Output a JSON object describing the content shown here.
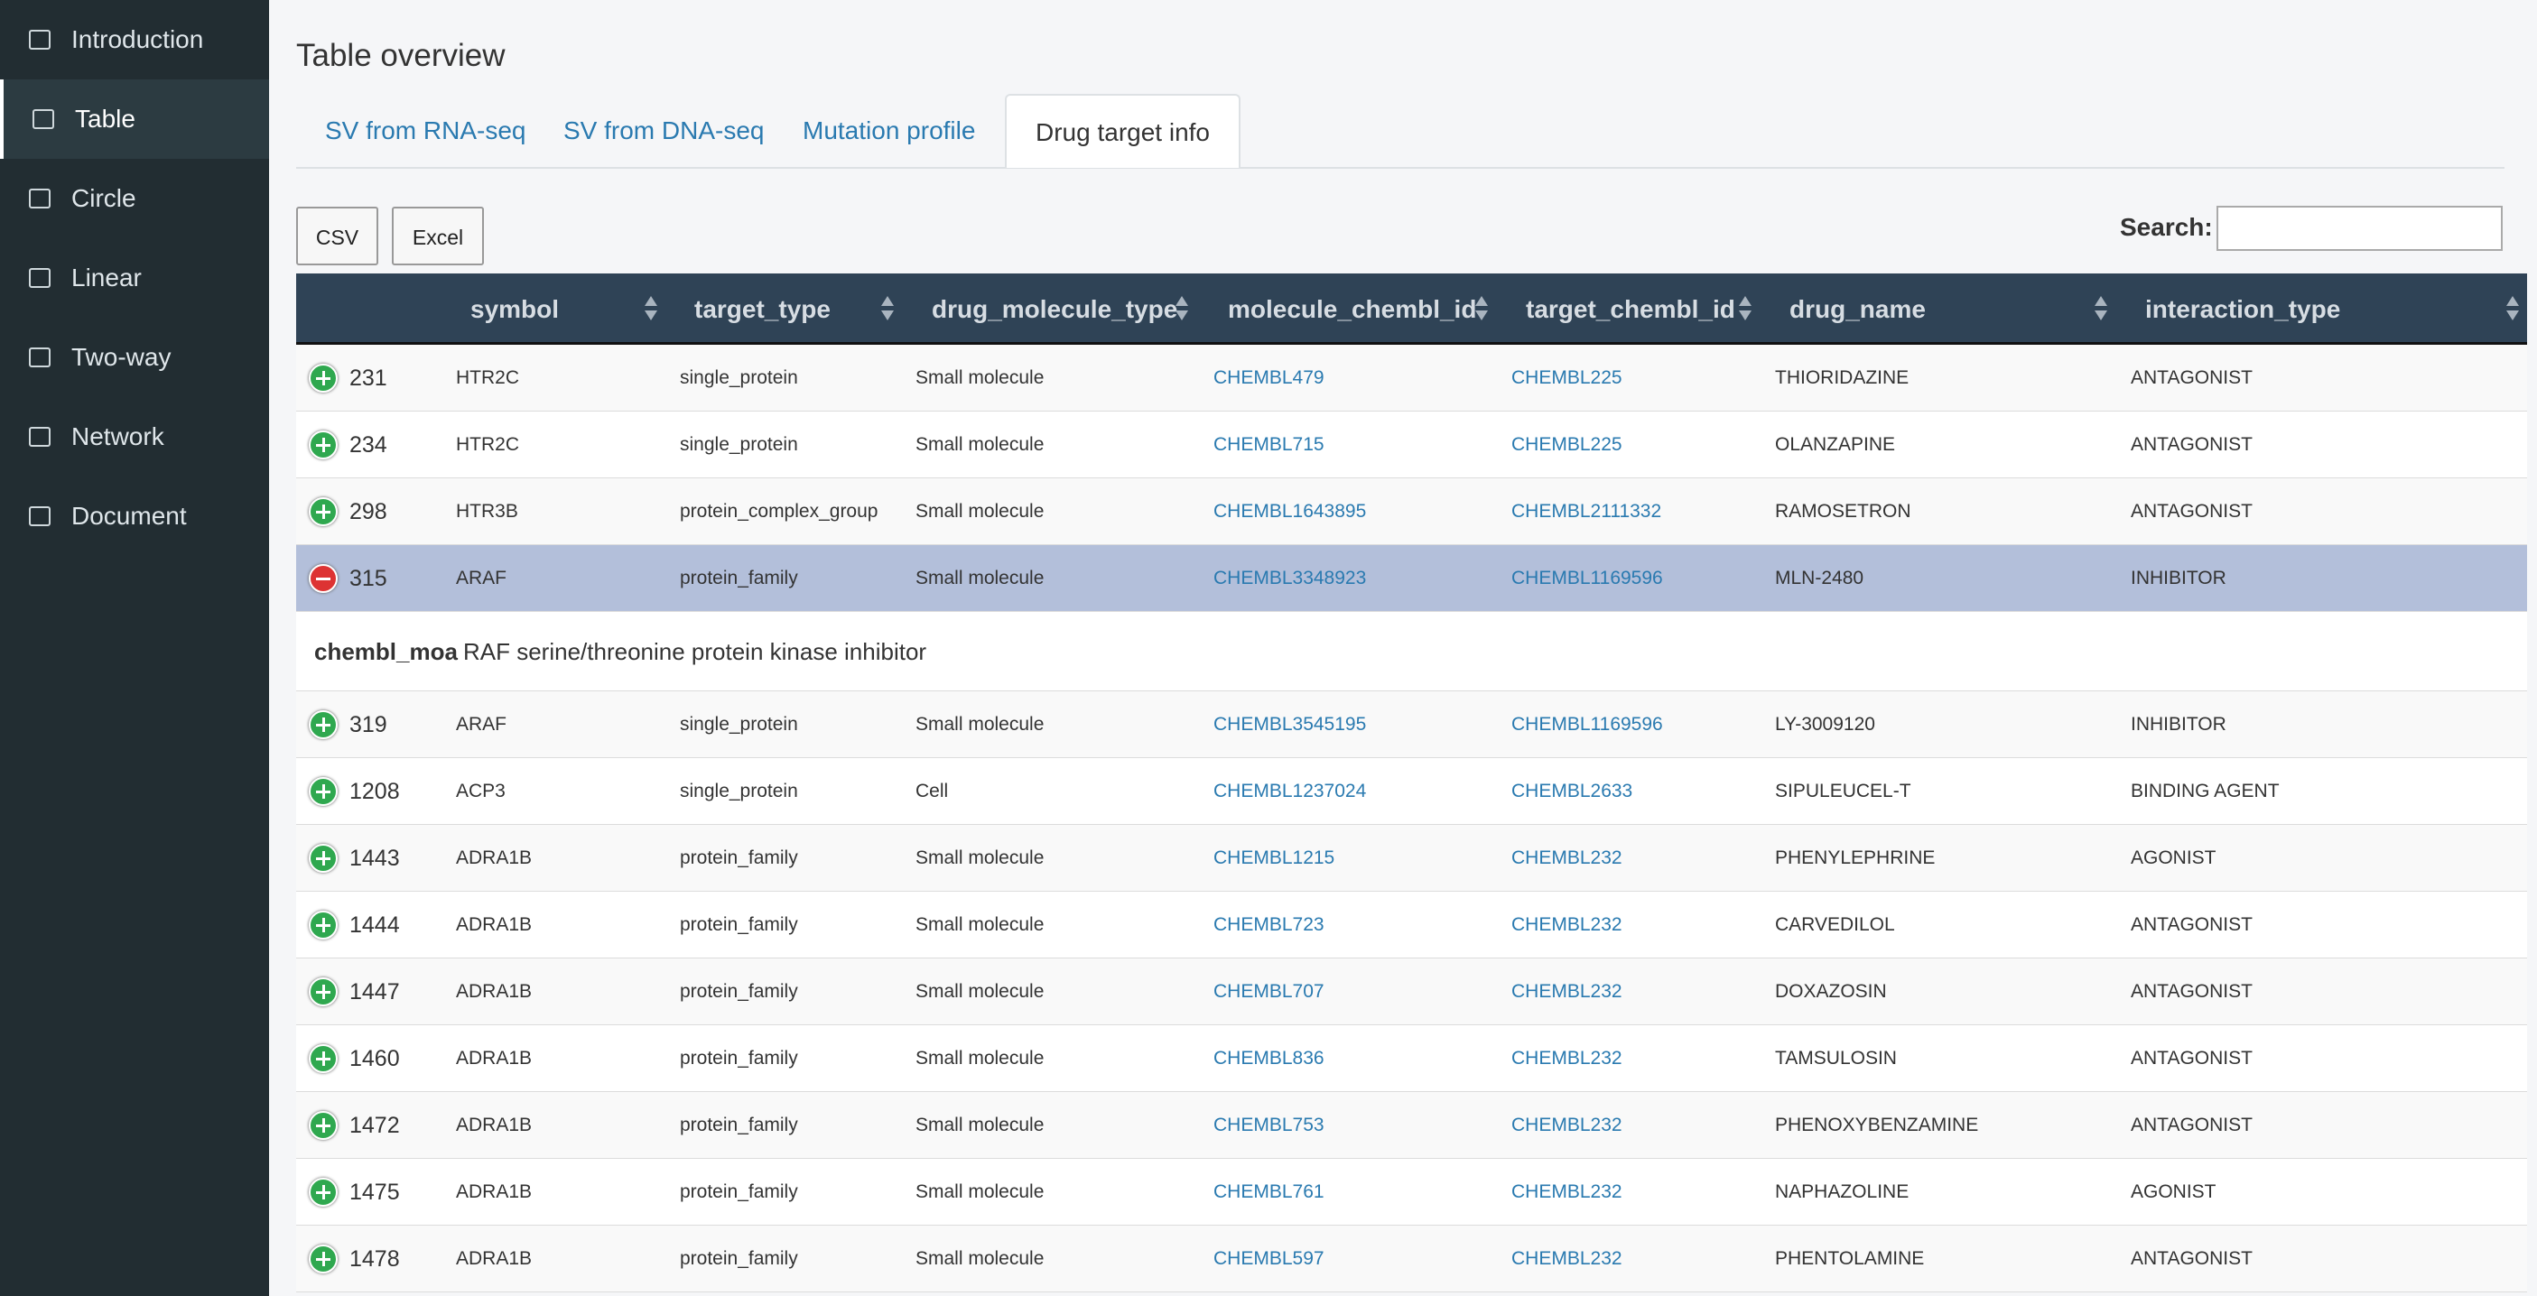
{
  "sidebar": {
    "items": [
      "Introduction",
      "Table",
      "Circle",
      "Linear",
      "Two-way",
      "Network",
      "Document"
    ],
    "active": 1
  },
  "header": {
    "title": "Table overview"
  },
  "tabs": {
    "items": [
      "SV from RNA-seq",
      "SV from DNA-seq",
      "Mutation profile",
      "Drug target info"
    ],
    "active": 3
  },
  "buttons": [
    "CSV",
    "Excel"
  ],
  "search": {
    "label": "Search:"
  },
  "table": {
    "columns": [
      "symbol",
      "target_type",
      "drug_molecule_type",
      "molecule_chembl_id",
      "target_chembl_id",
      "drug_name",
      "interaction_type"
    ],
    "rows": [
      {
        "id": "231",
        "cells": [
          "HTR2C",
          "single_protein",
          "Small molecule",
          "CHEMBL479",
          "CHEMBL225",
          "THIORIDAZINE",
          "ANTAGONIST"
        ]
      },
      {
        "id": "234",
        "cells": [
          "HTR2C",
          "single_protein",
          "Small molecule",
          "CHEMBL715",
          "CHEMBL225",
          "OLANZAPINE",
          "ANTAGONIST"
        ]
      },
      {
        "id": "298",
        "cells": [
          "HTR3B",
          "protein_complex_group",
          "Small molecule",
          "CHEMBL1643895",
          "CHEMBL2111332",
          "RAMOSETRON",
          "ANTAGONIST"
        ]
      },
      {
        "id": "315",
        "cells": [
          "ARAF",
          "protein_family",
          "Small molecule",
          "CHEMBL3348923",
          "CHEMBL1169596",
          "MLN-2480",
          "INHIBITOR"
        ],
        "detail": {
          "label": "chembl_moa",
          "text": "RAF serine/threonine protein kinase inhibitor"
        }
      },
      {
        "id": "319",
        "cells": [
          "ARAF",
          "single_protein",
          "Small molecule",
          "CHEMBL3545195",
          "CHEMBL1169596",
          "LY-3009120",
          "INHIBITOR"
        ]
      },
      {
        "id": "1208",
        "cells": [
          "ACP3",
          "single_protein",
          "Cell",
          "CHEMBL1237024",
          "CHEMBL2633",
          "SIPULEUCEL-T",
          "BINDING AGENT"
        ]
      },
      {
        "id": "1443",
        "cells": [
          "ADRA1B",
          "protein_family",
          "Small molecule",
          "CHEMBL1215",
          "CHEMBL232",
          "PHENYLEPHRINE",
          "AGONIST"
        ]
      },
      {
        "id": "1444",
        "cells": [
          "ADRA1B",
          "protein_family",
          "Small molecule",
          "CHEMBL723",
          "CHEMBL232",
          "CARVEDILOL",
          "ANTAGONIST"
        ]
      },
      {
        "id": "1447",
        "cells": [
          "ADRA1B",
          "protein_family",
          "Small molecule",
          "CHEMBL707",
          "CHEMBL232",
          "DOXAZOSIN",
          "ANTAGONIST"
        ]
      },
      {
        "id": "1460",
        "cells": [
          "ADRA1B",
          "protein_family",
          "Small molecule",
          "CHEMBL836",
          "CHEMBL232",
          "TAMSULOSIN",
          "ANTAGONIST"
        ]
      },
      {
        "id": "1472",
        "cells": [
          "ADRA1B",
          "protein_family",
          "Small molecule",
          "CHEMBL753",
          "CHEMBL232",
          "PHENOXYBENZAMINE",
          "ANTAGONIST"
        ]
      },
      {
        "id": "1475",
        "cells": [
          "ADRA1B",
          "protein_family",
          "Small molecule",
          "CHEMBL761",
          "CHEMBL232",
          "NAPHAZOLINE",
          "AGONIST"
        ]
      },
      {
        "id": "1478",
        "cells": [
          "ADRA1B",
          "protein_family",
          "Small molecule",
          "CHEMBL597",
          "CHEMBL232",
          "PHENTOLAMINE",
          "ANTAGONIST"
        ]
      }
    ]
  }
}
